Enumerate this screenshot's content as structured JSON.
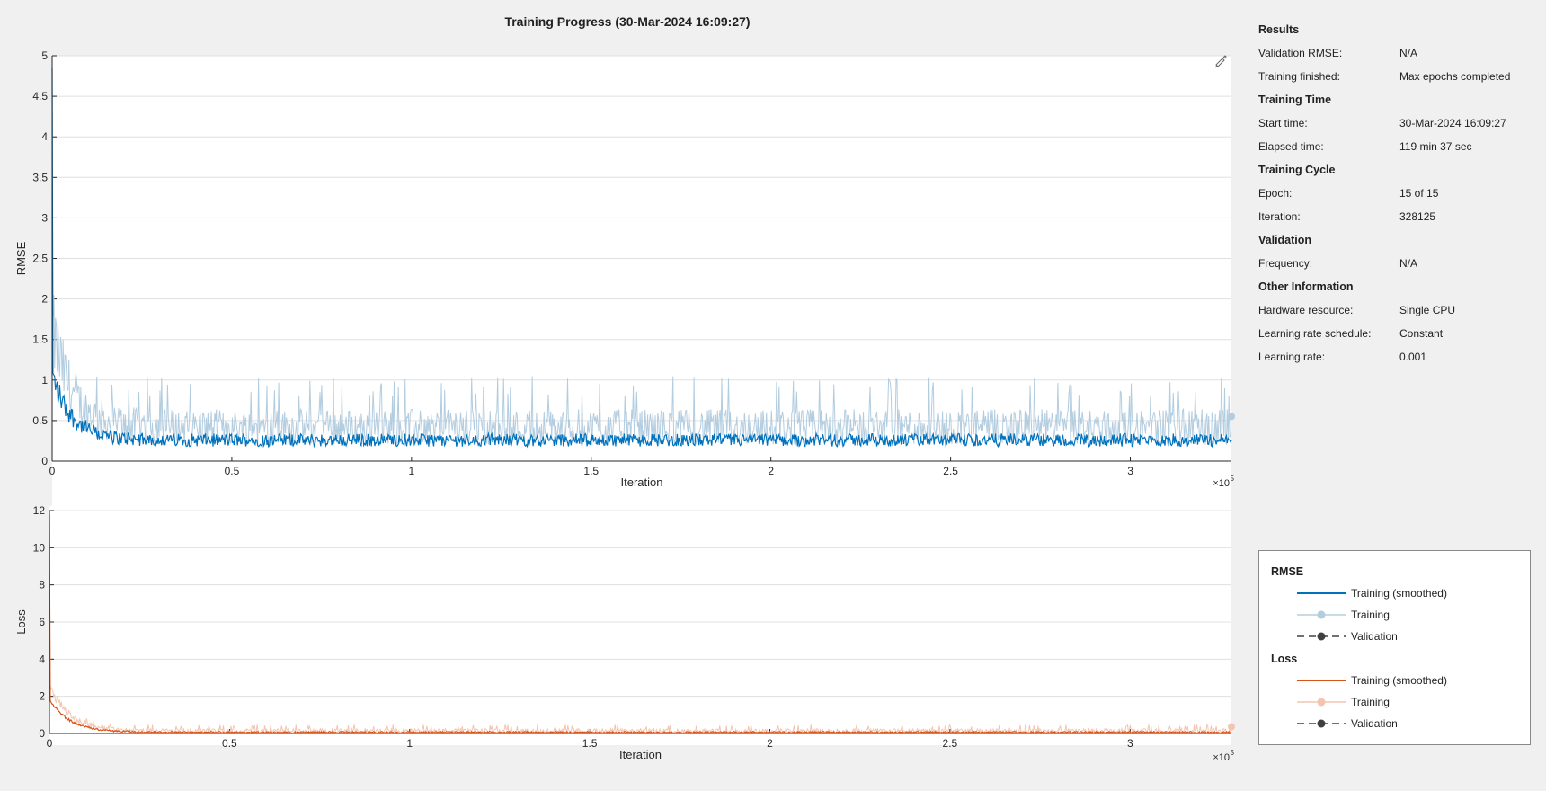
{
  "title": "Training Progress (30-Mar-2024 16:09:27)",
  "info": {
    "sections": [
      {
        "title": "Results",
        "rows": [
          {
            "label": "Validation RMSE:",
            "value": "N/A"
          },
          {
            "label": "Training finished:",
            "value": "Max epochs completed"
          }
        ]
      },
      {
        "title": "Training Time",
        "rows": [
          {
            "label": "Start time:",
            "value": "30-Mar-2024 16:09:27"
          },
          {
            "label": "Elapsed time:",
            "value": "119 min 37 sec"
          }
        ]
      },
      {
        "title": "Training Cycle",
        "rows": [
          {
            "label": "Epoch:",
            "value": "15 of 15"
          },
          {
            "label": "Iteration:",
            "value": "328125"
          }
        ]
      },
      {
        "title": "Validation",
        "rows": [
          {
            "label": "Frequency:",
            "value": "N/A"
          }
        ]
      },
      {
        "title": "Other Information",
        "rows": [
          {
            "label": "Hardware resource:",
            "value": "Single CPU"
          },
          {
            "label": "Learning rate schedule:",
            "value": "Constant"
          },
          {
            "label": "Learning rate:",
            "value": "0.001"
          }
        ]
      }
    ]
  },
  "legend": {
    "rmse_title": "RMSE",
    "loss_title": "Loss",
    "rmse_items": [
      "Training (smoothed)",
      "Training",
      "Validation"
    ],
    "loss_items": [
      "Training (smoothed)",
      "Training",
      "Validation"
    ]
  },
  "colors": {
    "rmse_smoothed": "#0072bd",
    "rmse_raw": "#b3cde0",
    "loss_smoothed": "#d95319",
    "loss_raw": "#f3c5b0",
    "validation": "#404040",
    "grid": "#e0e0e0"
  },
  "icons": {
    "edit": "brush-edit-icon"
  },
  "chart_data": [
    {
      "type": "line",
      "ylabel": "RMSE",
      "xlabel": "Iteration",
      "x_exponent_label": "×10",
      "x_exponent": "5",
      "xlim": [
        0,
        328125
      ],
      "ylim": [
        0,
        5
      ],
      "xticks": [
        0,
        50000,
        100000,
        150000,
        200000,
        250000,
        300000
      ],
      "xtick_labels": [
        "0",
        "0.5",
        "1",
        "1.5",
        "2",
        "2.5",
        "3"
      ],
      "yticks": [
        0,
        0.5,
        1,
        1.5,
        2,
        2.5,
        3,
        3.5,
        4,
        4.5,
        5
      ],
      "ytick_labels": [
        "0",
        "0.5",
        "1",
        "1.5",
        "2",
        "2.5",
        "3",
        "3.5",
        "4",
        "4.5",
        "5"
      ],
      "grid": true,
      "series": [
        {
          "name": "Training (smoothed)",
          "start": 4.85,
          "settle": 0.3,
          "band_low": 0.18,
          "band_high": 0.5
        },
        {
          "name": "Training",
          "start": 4.85,
          "settle": 0.45,
          "band_low": 0.2,
          "band_high": 1.0
        }
      ]
    },
    {
      "type": "line",
      "ylabel": "Loss",
      "xlabel": "Iteration",
      "x_exponent_label": "×10",
      "x_exponent": "5",
      "xlim": [
        0,
        328125
      ],
      "ylim": [
        0,
        12
      ],
      "xticks": [
        0,
        50000,
        100000,
        150000,
        200000,
        250000,
        300000
      ],
      "xtick_labels": [
        "0",
        "0.5",
        "1",
        "1.5",
        "2",
        "2.5",
        "3"
      ],
      "yticks": [
        0,
        2,
        4,
        6,
        8,
        10,
        12
      ],
      "ytick_labels": [
        "0",
        "2",
        "4",
        "6",
        "8",
        "10",
        "12"
      ],
      "grid": true,
      "series": [
        {
          "name": "Training (smoothed)",
          "start": 11.8,
          "settle": 0.08,
          "band_low": 0.02,
          "band_high": 0.2
        },
        {
          "name": "Training",
          "start": 11.8,
          "settle": 0.12,
          "band_low": 0.02,
          "band_high": 0.45
        }
      ]
    }
  ]
}
